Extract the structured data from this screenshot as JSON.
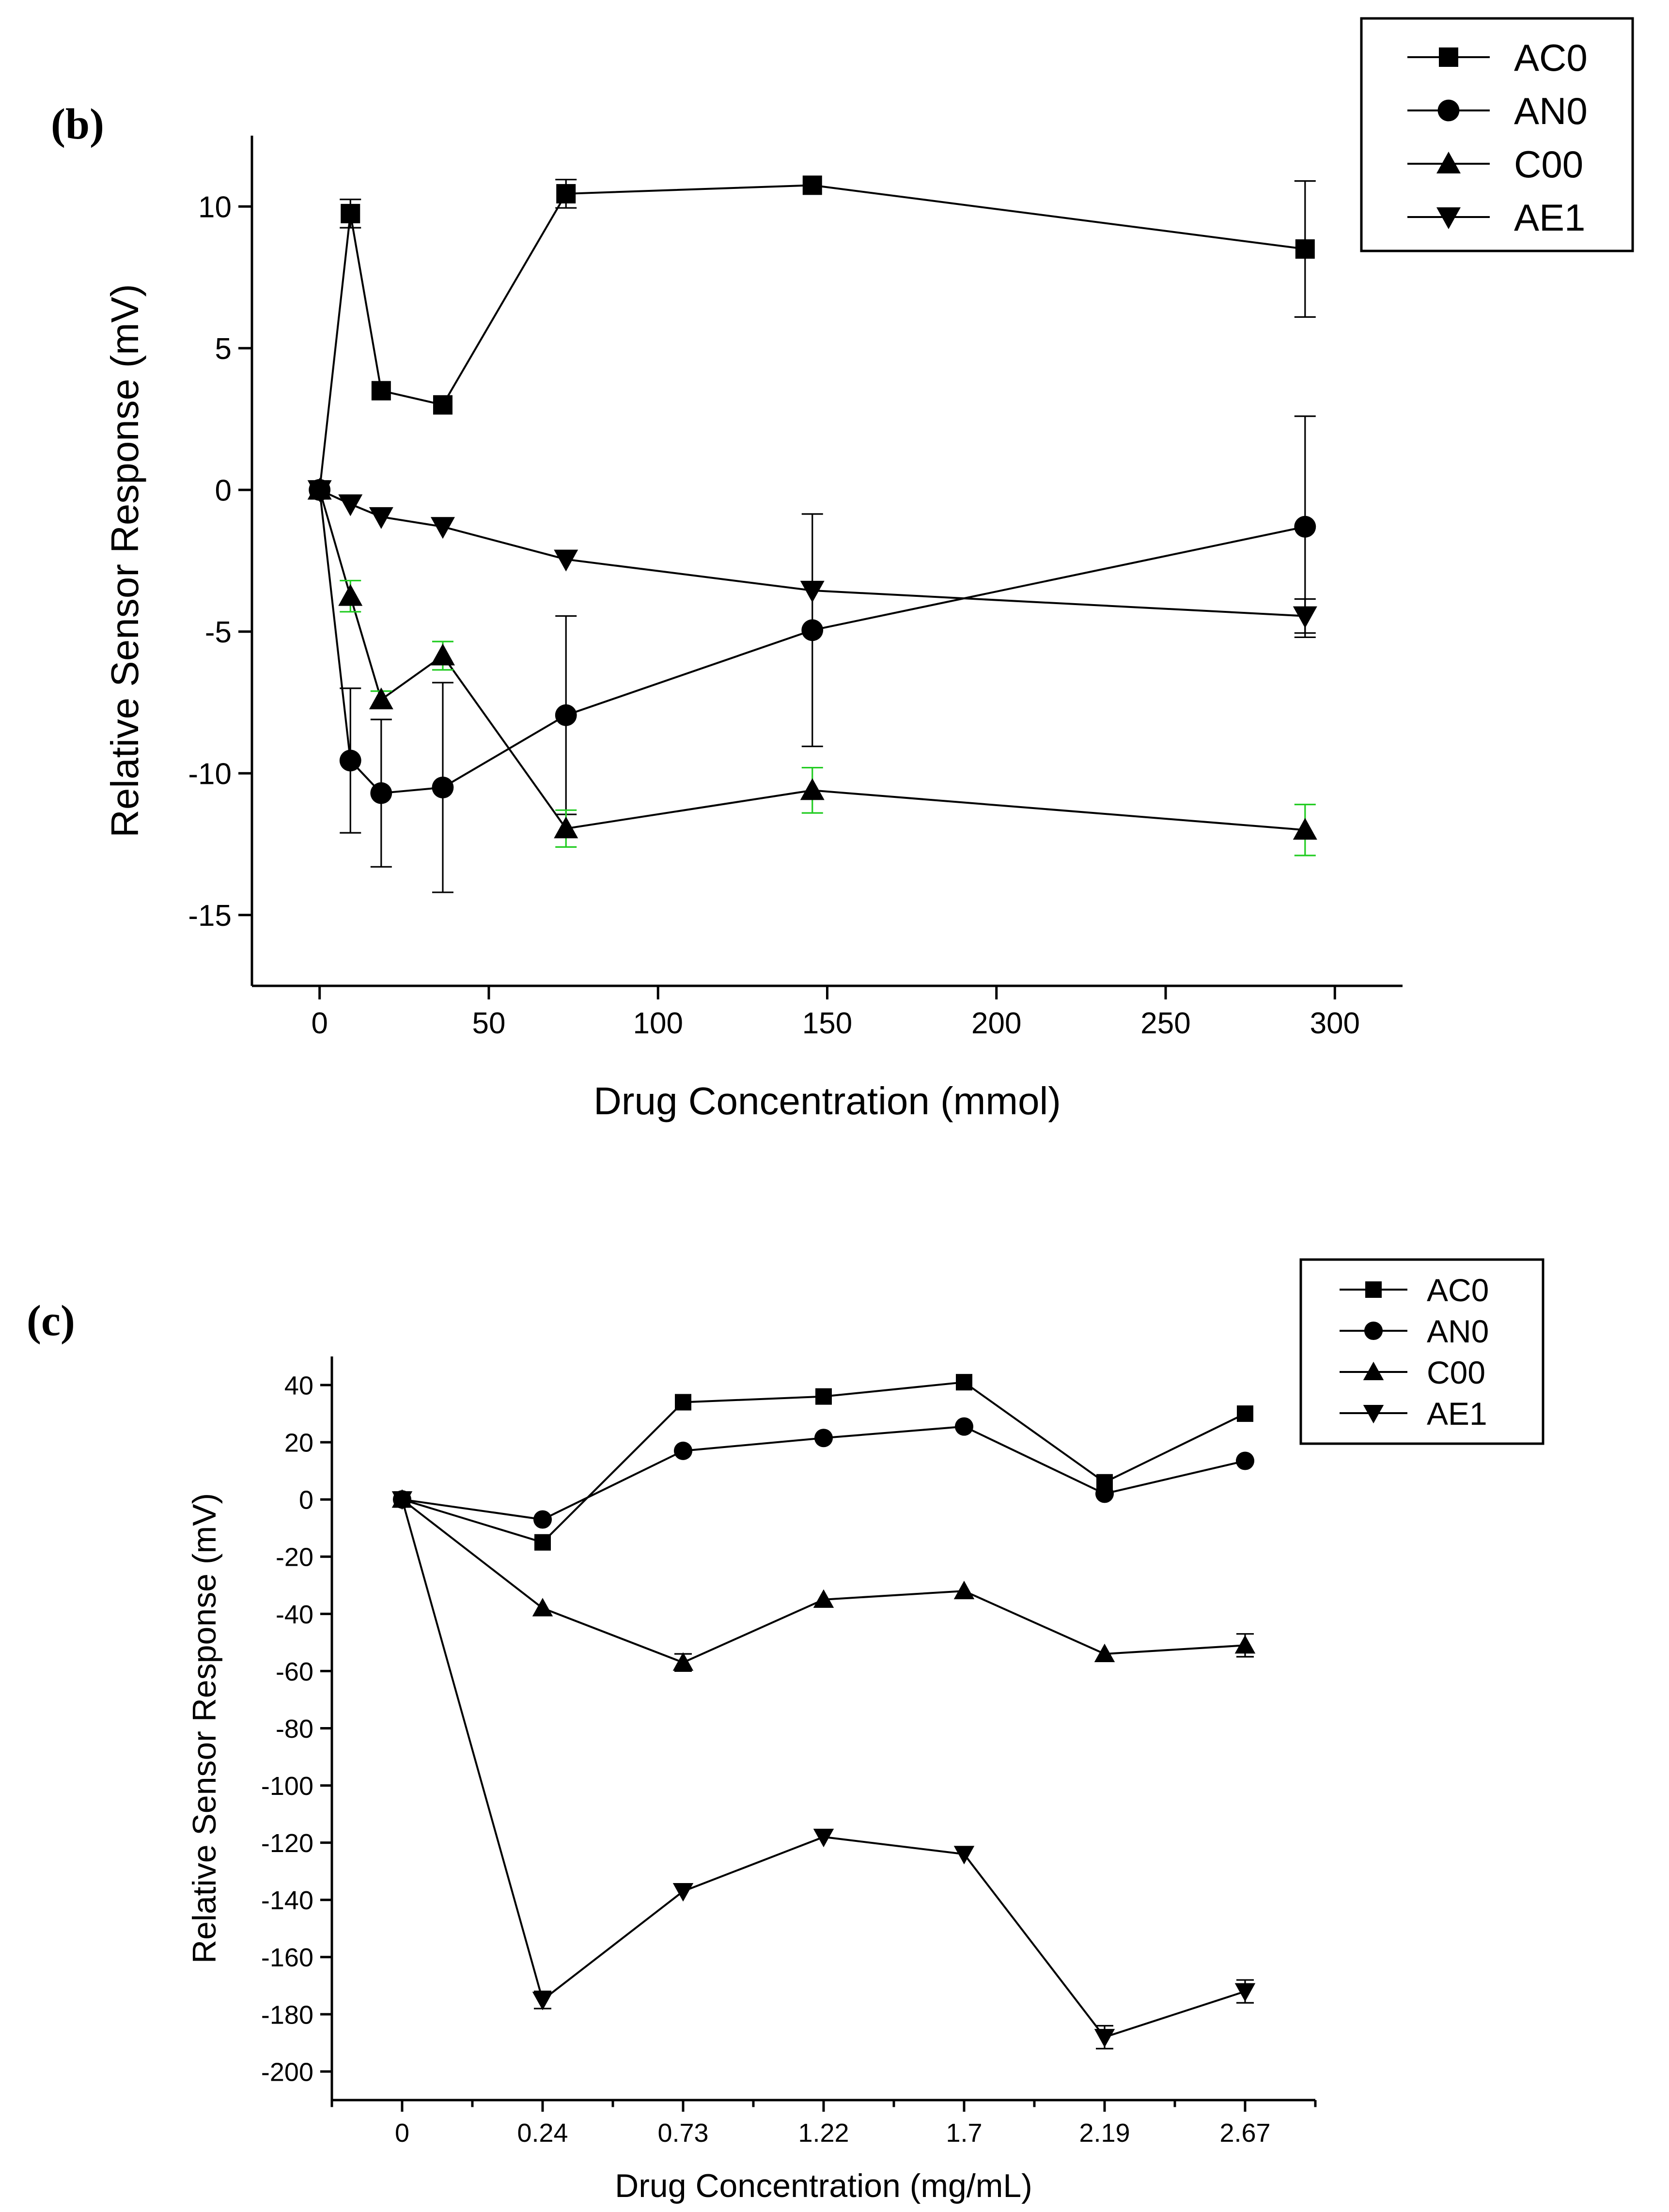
{
  "panels": {
    "b": "(b)",
    "c": "(c)"
  },
  "chart_data": [
    {
      "type": "line",
      "panel": "(b)",
      "title": "",
      "xlabel": "Drug Concentration (mmol)",
      "ylabel": "Relative Sensor Response (mV)",
      "xlim": [
        -20,
        320
      ],
      "ylim": [
        -17.5,
        12.5
      ],
      "xticks": [
        0,
        50,
        100,
        150,
        200,
        250,
        300
      ],
      "yticks": [
        -15,
        -10,
        -5,
        0,
        5,
        10
      ],
      "x": [
        0,
        9.1,
        18.2,
        36.4,
        72.8,
        145.6,
        291.2
      ],
      "legend": "top-right",
      "error_bar_colors": {
        "C00": "#22cc22"
      },
      "series": [
        {
          "name": "AC0",
          "marker": "square",
          "values": [
            0,
            9.75,
            3.5,
            3.0,
            10.45,
            10.75,
            8.5
          ],
          "errors": [
            0,
            0.5,
            0,
            0,
            0.5,
            0,
            2.4
          ]
        },
        {
          "name": "AN0",
          "marker": "circle",
          "values": [
            0,
            -9.55,
            -10.7,
            -10.5,
            -7.95,
            -4.95,
            -1.3
          ],
          "errors": [
            0,
            2.55,
            2.6,
            3.7,
            3.5,
            4.1,
            3.9
          ]
        },
        {
          "name": "C00",
          "marker": "triangle-up",
          "values": [
            0,
            -3.75,
            -7.4,
            -5.85,
            -11.95,
            -10.6,
            -12.0
          ],
          "errors": [
            0,
            0.55,
            0.3,
            0.5,
            0.65,
            0.8,
            0.9
          ]
        },
        {
          "name": "AE1",
          "marker": "triangle-down",
          "values": [
            0,
            -0.5,
            -0.95,
            -1.3,
            -2.45,
            -3.55,
            -4.45
          ],
          "errors": [
            0,
            0,
            0,
            0,
            0,
            0,
            0.6
          ]
        }
      ]
    },
    {
      "type": "line",
      "panel": "(c)",
      "title": "",
      "xlabel": "Drug Concentration (mg/mL)",
      "ylabel": "Relative Sensor Response (mV)",
      "categories": [
        "0",
        "0.24",
        "0.73",
        "1.22",
        "1.7",
        "2.19",
        "2.67"
      ],
      "xlim": [
        -0.5,
        6.5
      ],
      "ylim": [
        -210,
        50
      ],
      "yticks": [
        40,
        20,
        0,
        -20,
        -40,
        -60,
        -80,
        -100,
        -120,
        -140,
        -160,
        -180,
        -200
      ],
      "legend": "top-right",
      "series": [
        {
          "name": "AC0",
          "marker": "square",
          "values": [
            0,
            -15,
            34,
            36,
            41,
            6,
            30
          ],
          "errors": [
            0,
            0,
            0,
            0,
            0,
            0,
            0
          ]
        },
        {
          "name": "AN0",
          "marker": "circle",
          "values": [
            0,
            -7,
            17,
            21.5,
            25.5,
            2,
            13.5
          ],
          "errors": [
            0,
            0,
            0,
            0,
            0,
            0,
            0
          ]
        },
        {
          "name": "C00",
          "marker": "triangle-up",
          "values": [
            0,
            -38,
            -57,
            -35,
            -32,
            -54,
            -51
          ],
          "errors": [
            0,
            0,
            3,
            0,
            0,
            0,
            4
          ]
        },
        {
          "name": "AE1",
          "marker": "triangle-down",
          "values": [
            0,
            -175,
            -137,
            -118,
            -124,
            -188,
            -172
          ],
          "errors": [
            0,
            3,
            0,
            0,
            0,
            4,
            4
          ]
        }
      ]
    }
  ]
}
